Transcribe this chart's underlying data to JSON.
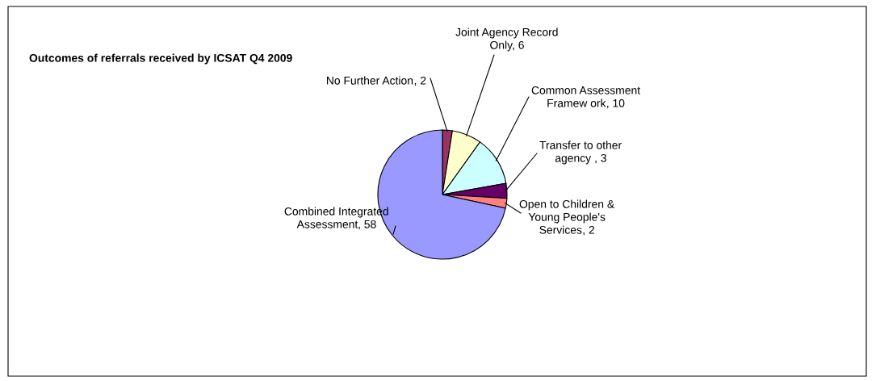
{
  "chart_data": {
    "type": "pie",
    "title": "Outcomes of referrals received by ICSAT Q4 2009",
    "categories": [
      "No Further Action",
      "Joint Agency Record\nOnly",
      "Common Assessment\nFramew ork",
      "Transfer to other\nagency ",
      "Open to Children &\nYoung People's\nServices",
      "Combined Integrated\nAssessment"
    ],
    "values": [
      2,
      6,
      10,
      3,
      2,
      58
    ],
    "colors": [
      "#993366",
      "#ffffcc",
      "#ccffff",
      "#660066",
      "#ff8080",
      "#9999ff"
    ],
    "value_labels": [
      ", 2",
      ", 6",
      ", 10",
      ", 3",
      ", 2",
      ", 58"
    ],
    "legend": false
  }
}
